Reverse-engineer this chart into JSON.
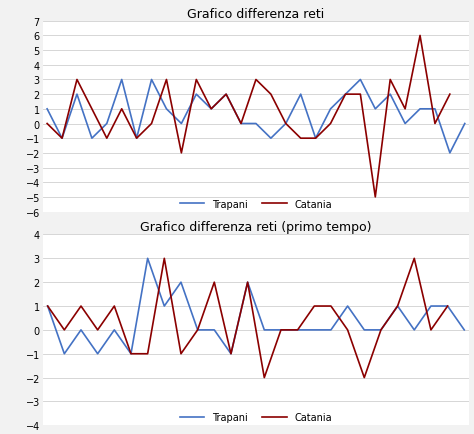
{
  "title1": "Grafico differenza reti",
  "title2": "Grafico differenza reti (primo tempo)",
  "trapani1": [
    1,
    -1,
    2,
    -1,
    0,
    3,
    -1,
    3,
    1,
    0,
    2,
    1,
    2,
    0,
    0,
    -1,
    0,
    2,
    -1,
    1,
    2,
    3,
    1,
    2,
    0,
    1,
    1,
    -2,
    0
  ],
  "catania1": [
    0,
    -1,
    3,
    1,
    -1,
    1,
    -1,
    0,
    3,
    -2,
    3,
    1,
    2,
    0,
    3,
    2,
    0,
    -1,
    -1,
    0,
    2,
    2,
    -5,
    3,
    1,
    6,
    0,
    2
  ],
  "trapani2": [
    1,
    -1,
    0,
    -1,
    0,
    -1,
    3,
    1,
    2,
    0,
    0,
    -1,
    2,
    0,
    0,
    0,
    0,
    0,
    1,
    0,
    0,
    1,
    0,
    1,
    1,
    0
  ],
  "catania2": [
    1,
    0,
    1,
    0,
    1,
    -1,
    -1,
    3,
    -1,
    0,
    2,
    -1,
    2,
    -2,
    0,
    0,
    1,
    1,
    0,
    -2,
    0,
    1,
    3,
    0,
    1
  ],
  "trapani_color": "#4472C4",
  "catania_color": "#8B0000",
  "ylim1": [
    -6,
    7
  ],
  "ylim2": [
    -4,
    4
  ],
  "yticks1": [
    -6,
    -5,
    -4,
    -3,
    -2,
    -1,
    0,
    1,
    2,
    3,
    4,
    5,
    6,
    7
  ],
  "yticks2": [
    -4,
    -3,
    -2,
    -1,
    0,
    1,
    2,
    3,
    4
  ],
  "bg_color": "#f2f2f2",
  "plot_bg": "#ffffff",
  "legend_trapani": "Trapani",
  "legend_catania": "Catania",
  "linewidth": 1.2,
  "title_fontsize": 9,
  "tick_fontsize": 7,
  "legend_fontsize": 7
}
